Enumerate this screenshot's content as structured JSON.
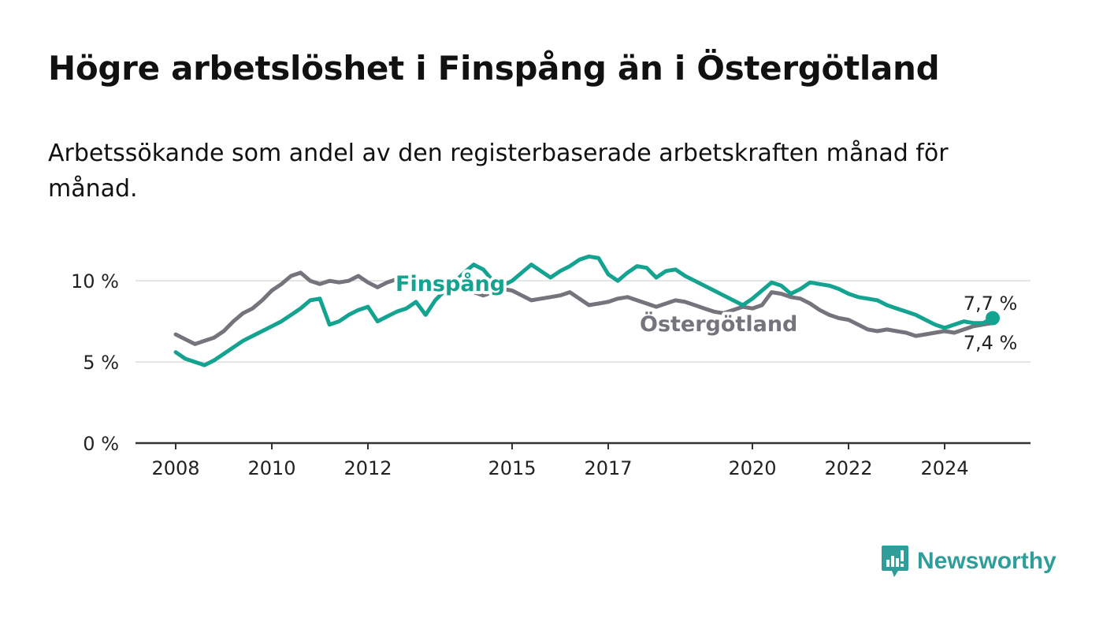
{
  "title": "Högre arbetslöshet i Finspång än i Östergötland",
  "subtitle": "Arbetssökande som andel av den registerbaserade arbetskraften månad för månad.",
  "brand": "Newsworthy",
  "colors": {
    "finspang": "#14a391",
    "ostergotland": "#76737d",
    "axis": "#333333",
    "grid": "#dddddd"
  },
  "chart_data": {
    "type": "line",
    "title": "Högre arbetslöshet i Finspång än i Östergötland",
    "subtitle": "Arbetssökande som andel av den registerbaserade arbetskraften månad för månad.",
    "xlabel": "",
    "ylabel": "",
    "xlim": [
      2008,
      2025
    ],
    "ylim": [
      0,
      12
    ],
    "x_ticks": [
      2008,
      2010,
      2012,
      2015,
      2017,
      2020,
      2022,
      2024
    ],
    "x_tick_labels": [
      "2008",
      "2010",
      "2012",
      "2015",
      "2017",
      "2020",
      "2022",
      "2024"
    ],
    "y_ticks": [
      0,
      5,
      10
    ],
    "y_tick_labels": [
      "0 %",
      "5 %",
      "10 %"
    ],
    "grid": true,
    "legend": "inline labels",
    "series": [
      {
        "name": "Finspång",
        "color": "#14a391",
        "end_label": "7,7 %",
        "points": [
          [
            2008.0,
            5.6
          ],
          [
            2008.2,
            5.2
          ],
          [
            2008.4,
            5.0
          ],
          [
            2008.6,
            4.8
          ],
          [
            2008.8,
            5.1
          ],
          [
            2009.0,
            5.5
          ],
          [
            2009.2,
            5.9
          ],
          [
            2009.4,
            6.3
          ],
          [
            2009.6,
            6.6
          ],
          [
            2009.8,
            6.9
          ],
          [
            2010.0,
            7.2
          ],
          [
            2010.2,
            7.5
          ],
          [
            2010.4,
            7.9
          ],
          [
            2010.6,
            8.3
          ],
          [
            2010.8,
            8.8
          ],
          [
            2011.0,
            8.9
          ],
          [
            2011.2,
            7.3
          ],
          [
            2011.4,
            7.5
          ],
          [
            2011.6,
            7.9
          ],
          [
            2011.8,
            8.2
          ],
          [
            2012.0,
            8.4
          ],
          [
            2012.2,
            7.5
          ],
          [
            2012.4,
            7.8
          ],
          [
            2012.6,
            8.1
          ],
          [
            2012.8,
            8.3
          ],
          [
            2013.0,
            8.7
          ],
          [
            2013.2,
            7.9
          ],
          [
            2013.4,
            8.8
          ],
          [
            2013.6,
            9.4
          ],
          [
            2013.8,
            9.9
          ],
          [
            2014.0,
            10.5
          ],
          [
            2014.2,
            11.0
          ],
          [
            2014.4,
            10.7
          ],
          [
            2014.6,
            10.0
          ],
          [
            2014.8,
            9.7
          ],
          [
            2015.0,
            10.0
          ],
          [
            2015.2,
            10.5
          ],
          [
            2015.4,
            11.0
          ],
          [
            2015.6,
            10.6
          ],
          [
            2015.8,
            10.2
          ],
          [
            2016.0,
            10.6
          ],
          [
            2016.2,
            10.9
          ],
          [
            2016.4,
            11.3
          ],
          [
            2016.6,
            11.5
          ],
          [
            2016.8,
            11.4
          ],
          [
            2017.0,
            10.4
          ],
          [
            2017.2,
            10.0
          ],
          [
            2017.4,
            10.5
          ],
          [
            2017.6,
            10.9
          ],
          [
            2017.8,
            10.8
          ],
          [
            2018.0,
            10.2
          ],
          [
            2018.2,
            10.6
          ],
          [
            2018.4,
            10.7
          ],
          [
            2018.6,
            10.3
          ],
          [
            2018.8,
            10.0
          ],
          [
            2019.0,
            9.7
          ],
          [
            2019.2,
            9.4
          ],
          [
            2019.4,
            9.1
          ],
          [
            2019.6,
            8.8
          ],
          [
            2019.8,
            8.5
          ],
          [
            2020.0,
            8.9
          ],
          [
            2020.2,
            9.4
          ],
          [
            2020.4,
            9.9
          ],
          [
            2020.6,
            9.7
          ],
          [
            2020.8,
            9.2
          ],
          [
            2021.0,
            9.5
          ],
          [
            2021.2,
            9.9
          ],
          [
            2021.4,
            9.8
          ],
          [
            2021.6,
            9.7
          ],
          [
            2021.8,
            9.5
          ],
          [
            2022.0,
            9.2
          ],
          [
            2022.2,
            9.0
          ],
          [
            2022.4,
            8.9
          ],
          [
            2022.6,
            8.8
          ],
          [
            2022.8,
            8.5
          ],
          [
            2023.0,
            8.3
          ],
          [
            2023.2,
            8.1
          ],
          [
            2023.4,
            7.9
          ],
          [
            2023.6,
            7.6
          ],
          [
            2023.8,
            7.3
          ],
          [
            2024.0,
            7.1
          ],
          [
            2024.2,
            7.3
          ],
          [
            2024.4,
            7.5
          ],
          [
            2024.6,
            7.4
          ],
          [
            2024.8,
            7.4
          ],
          [
            2025.0,
            7.7
          ]
        ]
      },
      {
        "name": "Östergötland",
        "color": "#76737d",
        "end_label": "7,4 %",
        "points": [
          [
            2008.0,
            6.7
          ],
          [
            2008.2,
            6.4
          ],
          [
            2008.4,
            6.1
          ],
          [
            2008.6,
            6.3
          ],
          [
            2008.8,
            6.5
          ],
          [
            2009.0,
            6.9
          ],
          [
            2009.2,
            7.5
          ],
          [
            2009.4,
            8.0
          ],
          [
            2009.6,
            8.3
          ],
          [
            2009.8,
            8.8
          ],
          [
            2010.0,
            9.4
          ],
          [
            2010.2,
            9.8
          ],
          [
            2010.4,
            10.3
          ],
          [
            2010.6,
            10.5
          ],
          [
            2010.8,
            10.0
          ],
          [
            2011.0,
            9.8
          ],
          [
            2011.2,
            10.0
          ],
          [
            2011.4,
            9.9
          ],
          [
            2011.6,
            10.0
          ],
          [
            2011.8,
            10.3
          ],
          [
            2012.0,
            9.9
          ],
          [
            2012.2,
            9.6
          ],
          [
            2012.4,
            9.9
          ],
          [
            2012.6,
            10.1
          ],
          [
            2012.8,
            10.2
          ],
          [
            2013.0,
            9.9
          ],
          [
            2013.2,
            9.7
          ],
          [
            2013.4,
            9.9
          ],
          [
            2013.6,
            10.0
          ],
          [
            2013.8,
            9.8
          ],
          [
            2014.0,
            9.6
          ],
          [
            2014.2,
            9.3
          ],
          [
            2014.4,
            9.1
          ],
          [
            2014.6,
            9.3
          ],
          [
            2014.8,
            9.5
          ],
          [
            2015.0,
            9.4
          ],
          [
            2015.2,
            9.1
          ],
          [
            2015.4,
            8.8
          ],
          [
            2015.6,
            8.9
          ],
          [
            2015.8,
            9.0
          ],
          [
            2016.0,
            9.1
          ],
          [
            2016.2,
            9.3
          ],
          [
            2016.4,
            8.9
          ],
          [
            2016.6,
            8.5
          ],
          [
            2016.8,
            8.6
          ],
          [
            2017.0,
            8.7
          ],
          [
            2017.2,
            8.9
          ],
          [
            2017.4,
            9.0
          ],
          [
            2017.6,
            8.8
          ],
          [
            2017.8,
            8.6
          ],
          [
            2018.0,
            8.4
          ],
          [
            2018.2,
            8.6
          ],
          [
            2018.4,
            8.8
          ],
          [
            2018.6,
            8.7
          ],
          [
            2018.8,
            8.5
          ],
          [
            2019.0,
            8.3
          ],
          [
            2019.2,
            8.1
          ],
          [
            2019.4,
            8.0
          ],
          [
            2019.6,
            8.2
          ],
          [
            2019.8,
            8.4
          ],
          [
            2020.0,
            8.3
          ],
          [
            2020.2,
            8.5
          ],
          [
            2020.4,
            9.3
          ],
          [
            2020.6,
            9.2
          ],
          [
            2020.8,
            9.0
          ],
          [
            2021.0,
            8.9
          ],
          [
            2021.2,
            8.6
          ],
          [
            2021.4,
            8.2
          ],
          [
            2021.6,
            7.9
          ],
          [
            2021.8,
            7.7
          ],
          [
            2022.0,
            7.6
          ],
          [
            2022.2,
            7.3
          ],
          [
            2022.4,
            7.0
          ],
          [
            2022.6,
            6.9
          ],
          [
            2022.8,
            7.0
          ],
          [
            2023.0,
            6.9
          ],
          [
            2023.2,
            6.8
          ],
          [
            2023.4,
            6.6
          ],
          [
            2023.6,
            6.7
          ],
          [
            2023.8,
            6.8
          ],
          [
            2024.0,
            6.9
          ],
          [
            2024.2,
            6.8
          ],
          [
            2024.4,
            7.0
          ],
          [
            2024.6,
            7.2
          ],
          [
            2024.8,
            7.3
          ],
          [
            2025.0,
            7.4
          ]
        ]
      }
    ]
  }
}
